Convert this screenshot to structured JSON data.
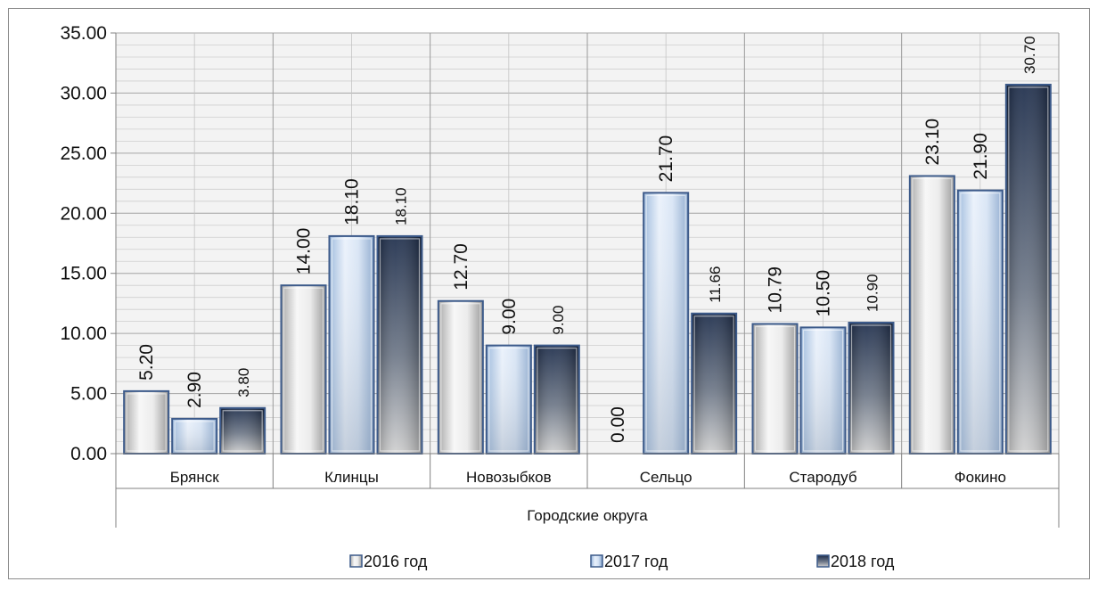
{
  "chart_data": {
    "type": "bar",
    "categories": [
      "Брянск",
      "Клинцы",
      "Новозыбков",
      "Сельцо",
      "Стародуб",
      "Фокино"
    ],
    "group_label": "Городские округа",
    "series": [
      {
        "name": "2016 год",
        "values": [
          5.2,
          14.0,
          12.7,
          0.0,
          10.79,
          23.1
        ],
        "labels": [
          "5.20",
          "14.00",
          "12.70",
          "0.00",
          "10.79",
          "23.10"
        ],
        "style": "light"
      },
      {
        "name": "2017 год",
        "values": [
          2.9,
          18.1,
          9.0,
          21.7,
          10.5,
          21.9
        ],
        "labels": [
          "2.90",
          "18.10",
          "9.00",
          "21.70",
          "10.50",
          "21.90"
        ],
        "style": "blue"
      },
      {
        "name": "2018 год",
        "values": [
          3.8,
          18.1,
          9.0,
          11.66,
          10.9,
          30.7
        ],
        "labels": [
          "3.80",
          "18.10",
          "9.00",
          "11.66",
          "10.90",
          "30.70"
        ],
        "style": "dark"
      }
    ],
    "ylim": [
      0,
      35
    ],
    "yticks": [
      "0.00",
      "5.00",
      "10.00",
      "15.00",
      "20.00",
      "25.00",
      "30.00",
      "35.00"
    ],
    "grid": true,
    "legend_position": "bottom",
    "colors": {
      "bar_outline": "#3c5a8a",
      "grid": "#a8a8a8",
      "plot_background": "#f2f2f2",
      "axis": "#808080"
    }
  }
}
